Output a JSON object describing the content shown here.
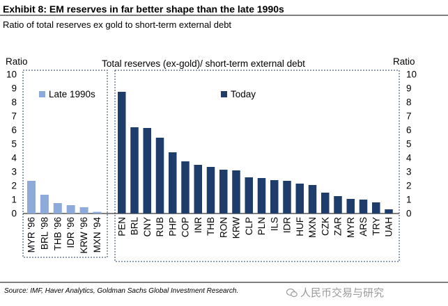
{
  "header": {
    "title": "Exhibit 8: EM reserves in far better shape than the late 1990s",
    "subtitle": "Ratio of total reserves ex gold to short-term external debt"
  },
  "chart_data": {
    "type": "bar",
    "title": "Total reserves (ex-gold)/ short-term external debt",
    "ylabel_left": "Ratio",
    "ylabel_right": "Ratio",
    "ylim": [
      0,
      10
    ],
    "yticks": [
      0,
      1,
      2,
      3,
      4,
      5,
      6,
      7,
      8,
      9,
      10
    ],
    "colors": {
      "late_1990s": "#8eaadb",
      "today": "#1f3d6b",
      "border": "#1f3d6b"
    },
    "series": [
      {
        "name": "Late 1990s",
        "key": "late_1990s",
        "categories": [
          "MYR '96",
          "BRL '98",
          "THB '96",
          "IDR '96",
          "KRW '96",
          "MXN '94"
        ],
        "values": [
          2.35,
          1.35,
          0.75,
          0.6,
          0.45,
          0.12
        ]
      },
      {
        "name": "Today",
        "key": "today",
        "categories": [
          "PEN",
          "BRL",
          "CNY",
          "RUB",
          "PHP",
          "COP",
          "INR",
          "THB",
          "RON",
          "KRW",
          "CLP",
          "PLN",
          "ILS",
          "IDR",
          "HUF",
          "MXN",
          "CZK",
          "ZAR",
          "MYR",
          "ARS",
          "TRY",
          "UAH"
        ],
        "values": [
          8.75,
          6.2,
          6.15,
          5.45,
          4.4,
          3.75,
          3.5,
          3.35,
          3.15,
          3.1,
          2.6,
          2.55,
          2.4,
          2.35,
          2.15,
          2.05,
          1.5,
          1.25,
          1.05,
          1.0,
          0.8,
          0.3
        ]
      }
    ]
  },
  "footer": {
    "source": "Source: IMF, Haver Analytics, Goldman Sachs Global Investment Research.",
    "watermark": "人民币交易与研究"
  }
}
